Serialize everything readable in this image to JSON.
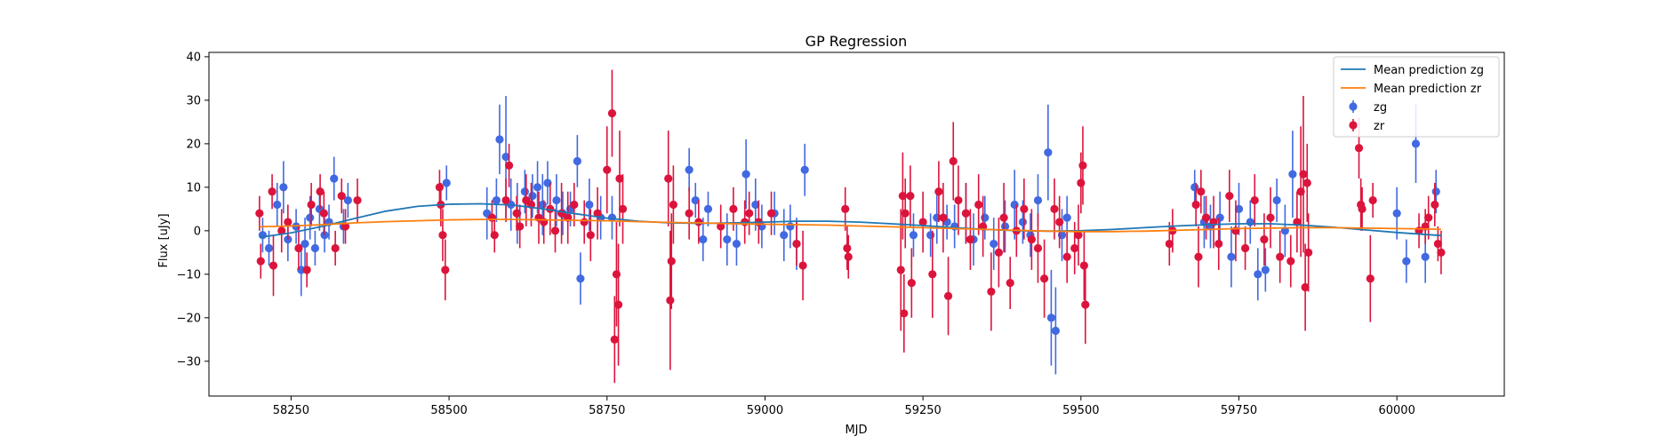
{
  "chart_data": {
    "type": "scatter",
    "title": "GP Regression",
    "xlabel": "MJD",
    "ylabel": "Flux [uJy]",
    "xlim": [
      58120,
      60170
    ],
    "ylim": [
      -38,
      41
    ],
    "xticks": [
      58250,
      58500,
      58750,
      59000,
      59250,
      59500,
      59750,
      60000
    ],
    "yticks": [
      -30,
      -20,
      -10,
      0,
      10,
      20,
      30,
      40
    ],
    "ytick_labels": [
      "−30",
      "−20",
      "−10",
      "0",
      "10",
      "20",
      "30",
      "40"
    ],
    "grid": false,
    "legend_position": "top-right",
    "colors": {
      "zg_line": "#1f77b4",
      "zr_line": "#ff7f0e",
      "zg_points": "#4169e1",
      "zr_points": "#dc143c"
    },
    "series": [
      {
        "name": "Mean prediction zg",
        "kind": "line",
        "x": [
          58200,
          58250,
          58300,
          58350,
          58400,
          58450,
          58500,
          58550,
          58600,
          58650,
          58700,
          58750,
          58800,
          58850,
          58900,
          58950,
          59000,
          59050,
          59100,
          59150,
          59200,
          59250,
          59300,
          59350,
          59400,
          59450,
          59500,
          59550,
          59600,
          59650,
          59700,
          59750,
          59800,
          59850,
          59900,
          59950,
          60000,
          60050,
          60070
        ],
        "y": [
          -1.5,
          -0.5,
          1.0,
          2.8,
          4.5,
          5.6,
          6.1,
          6.2,
          5.9,
          5.0,
          3.9,
          2.9,
          2.2,
          1.8,
          1.7,
          1.8,
          2.0,
          2.2,
          2.2,
          2.0,
          1.6,
          1.2,
          0.7,
          0.3,
          0.0,
          -0.1,
          0.0,
          0.3,
          0.7,
          1.1,
          1.4,
          1.6,
          1.6,
          1.3,
          0.8,
          0.2,
          -0.4,
          -0.9,
          -1.1
        ]
      },
      {
        "name": "Mean prediction zr",
        "kind": "line",
        "x": [
          58200,
          58250,
          58300,
          58350,
          58400,
          58450,
          58500,
          58550,
          58600,
          58650,
          58700,
          58750,
          58800,
          58850,
          58900,
          58950,
          59000,
          59050,
          59100,
          59150,
          59200,
          59250,
          59300,
          59350,
          59400,
          59450,
          59500,
          59550,
          59600,
          59650,
          59700,
          59750,
          59800,
          59850,
          59900,
          59950,
          60000,
          60050,
          60070
        ],
        "y": [
          0.9,
          1.1,
          1.4,
          1.8,
          2.1,
          2.3,
          2.5,
          2.6,
          2.6,
          2.5,
          2.4,
          2.3,
          2.1,
          1.9,
          1.8,
          1.6,
          1.5,
          1.4,
          1.3,
          1.1,
          0.9,
          0.7,
          0.5,
          0.3,
          0.1,
          -0.1,
          -0.2,
          -0.2,
          -0.1,
          0.1,
          0.3,
          0.5,
          0.6,
          0.7,
          0.7,
          0.6,
          0.5,
          0.4,
          0.3
        ]
      },
      {
        "name": "zg",
        "kind": "errorbar",
        "x": [
          58205,
          58215,
          58228,
          58238,
          58245,
          58258,
          58266,
          58272,
          58280,
          58288,
          58295,
          58303,
          58310,
          58318,
          58333,
          58340,
          58496,
          58560,
          58575,
          58580,
          58590,
          58598,
          58608,
          58620,
          58632,
          58640,
          58648,
          58656,
          58670,
          58680,
          58692,
          58703,
          58708,
          58722,
          58740,
          58758,
          58880,
          58890,
          58902,
          58910,
          58940,
          58955,
          58970,
          58985,
          58995,
          59015,
          59030,
          59040,
          59050,
          59063,
          59235,
          59262,
          59272,
          59288,
          59300,
          59318,
          59330,
          59348,
          59362,
          59380,
          59395,
          59408,
          59420,
          59432,
          59448,
          59453,
          59460,
          59470,
          59478,
          59680,
          59695,
          59705,
          59720,
          59738,
          59750,
          59768,
          59780,
          59792,
          59810,
          59823,
          59835,
          60000,
          60015,
          60030,
          60045,
          60062
        ],
        "y": [
          -1,
          -4,
          6,
          10,
          -2,
          1,
          -9,
          -3,
          3,
          -4,
          5,
          -1,
          2,
          12,
          1,
          7,
          11,
          4,
          7,
          21,
          17,
          6,
          4,
          9,
          8,
          10,
          6,
          11,
          7,
          4,
          5,
          16,
          -11,
          6,
          3,
          3,
          14,
          7,
          -2,
          5,
          -2,
          -3,
          13,
          6,
          1,
          4,
          -1,
          1,
          -3,
          14,
          -1,
          -1,
          3,
          2,
          1,
          4,
          -2,
          3,
          -3,
          1,
          6,
          2,
          -1,
          7,
          18,
          -20,
          -23,
          -1,
          3,
          10,
          2,
          1,
          3,
          -6,
          5,
          2,
          -10,
          -9,
          7,
          0,
          13,
          4,
          -7,
          20,
          -6,
          9
        ],
        "err": [
          4,
          4,
          5,
          6,
          5,
          4,
          6,
          6,
          5,
          4,
          5,
          4,
          4,
          5,
          4,
          4,
          4,
          6,
          5,
          8,
          14,
          6,
          7,
          5,
          5,
          6,
          7,
          5,
          6,
          5,
          4,
          6,
          6,
          6,
          5,
          5,
          5,
          4,
          5,
          4,
          6,
          5,
          8,
          6,
          5,
          5,
          6,
          5,
          6,
          6,
          5,
          5,
          6,
          4,
          5,
          7,
          6,
          5,
          6,
          6,
          8,
          5,
          5,
          6,
          11,
          11,
          10,
          6,
          5,
          4,
          6,
          5,
          6,
          7,
          6,
          5,
          6,
          5,
          5,
          6,
          10,
          6,
          5,
          9,
          6,
          5
        ]
      },
      {
        "name": "zr",
        "kind": "errorbar",
        "x": [
          58200,
          58202,
          58220,
          58222,
          58235,
          58245,
          58262,
          58275,
          58282,
          58296,
          58302,
          58320,
          58330,
          58336,
          58355,
          58485,
          58487,
          58490,
          58494,
          58568,
          58572,
          58590,
          58595,
          58607,
          58612,
          58622,
          58630,
          58642,
          58650,
          58660,
          58668,
          58678,
          58688,
          58698,
          58714,
          58724,
          58735,
          58750,
          58758,
          58762,
          58765,
          58768,
          58770,
          58775,
          58847,
          58850,
          58852,
          58855,
          58880,
          58895,
          58930,
          58950,
          58968,
          58975,
          58990,
          59010,
          59050,
          59060,
          59127,
          59130,
          59132,
          59215,
          59218,
          59220,
          59222,
          59230,
          59232,
          59250,
          59265,
          59275,
          59282,
          59290,
          59298,
          59306,
          59318,
          59325,
          59338,
          59345,
          59358,
          59370,
          59378,
          59388,
          59398,
          59410,
          59422,
          59432,
          59442,
          59458,
          59466,
          59478,
          59490,
          59496,
          59500,
          59503,
          59505,
          59507,
          59640,
          59645,
          59682,
          59686,
          59690,
          59698,
          59710,
          59718,
          59735,
          59745,
          59760,
          59775,
          59790,
          59800,
          59815,
          59832,
          59842,
          59848,
          59852,
          59855,
          59858,
          59860,
          59940,
          59943,
          59945,
          59958,
          59962,
          60035,
          60045,
          60050,
          60060,
          60065,
          60070
        ],
        "y": [
          4,
          -7,
          9,
          -8,
          0,
          2,
          -4,
          -9,
          6,
          9,
          4,
          -4,
          8,
          1,
          7,
          10,
          6,
          -1,
          -9,
          3,
          -1,
          7,
          15,
          4,
          1,
          7,
          6,
          3,
          2,
          5,
          0,
          4,
          3,
          6,
          2,
          -1,
          4,
          14,
          27,
          -25,
          -10,
          -17,
          12,
          5,
          12,
          -16,
          -7,
          6,
          4,
          2,
          1,
          5,
          2,
          4,
          2,
          4,
          -3,
          -8,
          5,
          -4,
          -6,
          -9,
          8,
          -19,
          4,
          8,
          -12,
          2,
          -10,
          9,
          3,
          -15,
          16,
          7,
          4,
          -2,
          6,
          1,
          -14,
          -5,
          3,
          -12,
          0,
          5,
          -2,
          -4,
          -11,
          5,
          2,
          -6,
          -4,
          -1,
          11,
          15,
          -8,
          -17,
          -3,
          0,
          6,
          -6,
          9,
          3,
          2,
          -3,
          8,
          0,
          -4,
          7,
          -2,
          3,
          -6,
          -7,
          2,
          9,
          13,
          -13,
          11,
          -5,
          19,
          6,
          5,
          -11,
          7,
          0,
          1,
          3,
          6,
          -3,
          -5
        ],
        "err": [
          4,
          4,
          4,
          7,
          5,
          4,
          5,
          4,
          5,
          4,
          5,
          4,
          4,
          4,
          5,
          4,
          5,
          6,
          7,
          4,
          4,
          5,
          5,
          4,
          5,
          6,
          5,
          6,
          5,
          6,
          5,
          7,
          6,
          5,
          5,
          6,
          6,
          10,
          10,
          10,
          12,
          14,
          11,
          8,
          11,
          16,
          11,
          9,
          6,
          5,
          5,
          5,
          5,
          5,
          5,
          5,
          5,
          8,
          5,
          5,
          5,
          14,
          10,
          9,
          8,
          7,
          8,
          7,
          10,
          7,
          8,
          9,
          9,
          8,
          7,
          7,
          7,
          7,
          9,
          8,
          8,
          6,
          6,
          7,
          7,
          8,
          9,
          7,
          6,
          6,
          6,
          7,
          7,
          9,
          8,
          9,
          5,
          5,
          5,
          7,
          5,
          5,
          6,
          6,
          6,
          7,
          5,
          6,
          6,
          7,
          6,
          6,
          7,
          15,
          18,
          10,
          9,
          9,
          7,
          6,
          5,
          10,
          4,
          4,
          4,
          5,
          5,
          4,
          5
        ]
      }
    ]
  }
}
